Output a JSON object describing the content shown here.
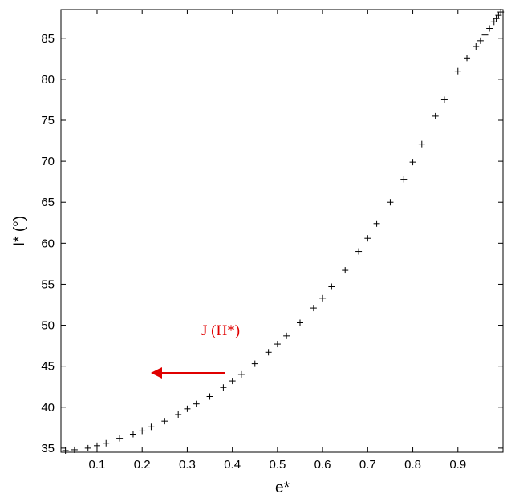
{
  "chart_data": {
    "type": "scatter",
    "xlabel": "e*",
    "ylabel": "I* (°)",
    "xlim": [
      0.02,
      1.0
    ],
    "ylim": [
      34.5,
      88.5
    ],
    "xticks": [
      0.1,
      0.2,
      0.3,
      0.4,
      0.5,
      0.6,
      0.7,
      0.8,
      0.9
    ],
    "yticks": [
      35,
      40,
      45,
      50,
      55,
      60,
      65,
      70,
      75,
      80,
      85
    ],
    "x_tick_labels": [
      "0.1",
      "0.2",
      "0.3",
      "0.4",
      "0.5",
      "0.6",
      "0.7",
      "0.8",
      "0.9"
    ],
    "y_tick_labels": [
      "35",
      "40",
      "45",
      "50",
      "55",
      "60",
      "65",
      "70",
      "75",
      "80",
      "85"
    ],
    "grid": false,
    "marker": "+",
    "marker_color": "#000000",
    "series": [
      {
        "x": [
          0.03,
          0.05,
          0.08,
          0.1,
          0.12,
          0.15,
          0.18,
          0.2,
          0.22,
          0.25,
          0.28,
          0.3,
          0.32,
          0.35,
          0.38,
          0.4,
          0.42,
          0.45,
          0.48,
          0.5,
          0.52,
          0.55,
          0.58,
          0.6,
          0.62,
          0.65,
          0.68,
          0.7,
          0.72,
          0.75,
          0.78,
          0.8,
          0.82,
          0.85,
          0.87,
          0.9,
          0.92,
          0.94,
          0.95,
          0.96,
          0.97,
          0.98,
          0.985,
          0.99,
          0.995
        ],
        "y": [
          34.7,
          34.8,
          35.0,
          35.3,
          35.6,
          36.2,
          36.7,
          37.1,
          37.6,
          38.3,
          39.1,
          39.8,
          40.4,
          41.3,
          42.4,
          43.2,
          44.0,
          45.3,
          46.7,
          47.7,
          48.7,
          50.3,
          52.1,
          53.3,
          54.7,
          56.7,
          59.0,
          60.6,
          62.4,
          65.0,
          67.8,
          69.9,
          72.1,
          75.5,
          77.5,
          81.0,
          82.6,
          84.0,
          84.7,
          85.4,
          86.2,
          87.0,
          87.4,
          87.8,
          88.2
        ]
      }
    ],
    "annotation": {
      "text": "J (H*)",
      "color": "#e00000",
      "arrow_direction": "left"
    }
  }
}
